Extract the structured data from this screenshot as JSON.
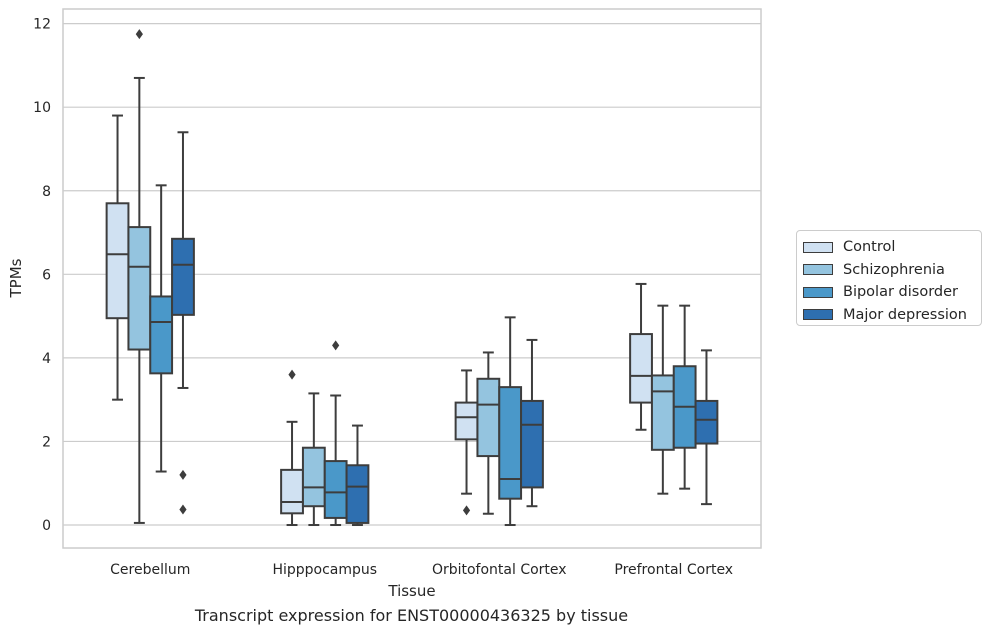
{
  "caption": "Transcript expression for ENST00000436325 by tissue",
  "chart_data": {
    "type": "box",
    "xlabel": "Tissue",
    "ylabel": "TPMs",
    "ylim": [
      -0.55,
      12.35
    ],
    "yticks": [
      0,
      2,
      4,
      6,
      8,
      10,
      12
    ],
    "grid": true,
    "legend_position": "right",
    "categories": [
      "Cerebellum",
      "Hipppocampus",
      "Orbitofontal Cortex",
      "Prefrontal Cortex"
    ],
    "series": [
      {
        "name": "Control",
        "color": "#d0e1f2",
        "boxes": [
          {
            "whislo": 3.0,
            "q1": 4.95,
            "med": 6.48,
            "q3": 7.7,
            "whishi": 9.8,
            "fliers": []
          },
          {
            "whislo": 0.0,
            "q1": 0.28,
            "med": 0.55,
            "q3": 1.32,
            "whishi": 2.47,
            "fliers": [
              3.6
            ]
          },
          {
            "whislo": 0.75,
            "q1": 2.05,
            "med": 2.58,
            "q3": 2.93,
            "whishi": 3.7,
            "fliers": [
              0.35
            ]
          },
          {
            "whislo": 2.28,
            "q1": 2.93,
            "med": 3.57,
            "q3": 4.57,
            "whishi": 5.77,
            "fliers": []
          }
        ]
      },
      {
        "name": "Schizophrenia",
        "color": "#94c4df",
        "boxes": [
          {
            "whislo": 0.05,
            "q1": 4.2,
            "med": 6.18,
            "q3": 7.13,
            "whishi": 10.7,
            "fliers": [
              11.75
            ]
          },
          {
            "whislo": 0.0,
            "q1": 0.45,
            "med": 0.9,
            "q3": 1.85,
            "whishi": 3.15,
            "fliers": []
          },
          {
            "whislo": 0.27,
            "q1": 1.65,
            "med": 2.88,
            "q3": 3.5,
            "whishi": 4.13,
            "fliers": []
          },
          {
            "whislo": 0.75,
            "q1": 1.8,
            "med": 3.2,
            "q3": 3.58,
            "whishi": 5.25,
            "fliers": []
          }
        ]
      },
      {
        "name": "Bipolar disorder",
        "color": "#4a98c9",
        "boxes": [
          {
            "whislo": 1.28,
            "q1": 3.63,
            "med": 4.86,
            "q3": 5.47,
            "whishi": 8.13,
            "fliers": []
          },
          {
            "whislo": 0.0,
            "q1": 0.17,
            "med": 0.78,
            "q3": 1.53,
            "whishi": 3.1,
            "fliers": [
              4.3
            ]
          },
          {
            "whislo": 0.0,
            "q1": 0.63,
            "med": 1.1,
            "q3": 3.3,
            "whishi": 4.97,
            "fliers": []
          },
          {
            "whislo": 0.87,
            "q1": 1.85,
            "med": 2.83,
            "q3": 3.8,
            "whishi": 5.25,
            "fliers": []
          }
        ]
      },
      {
        "name": "Major depression",
        "color": "#2e6fb0",
        "boxes": [
          {
            "whislo": 3.28,
            "q1": 5.03,
            "med": 6.23,
            "q3": 6.85,
            "whishi": 9.4,
            "fliers": [
              1.2,
              0.37
            ]
          },
          {
            "whislo": 0.0,
            "q1": 0.05,
            "med": 0.92,
            "q3": 1.43,
            "whishi": 2.38,
            "fliers": []
          },
          {
            "whislo": 0.45,
            "q1": 0.9,
            "med": 2.4,
            "q3": 2.97,
            "whishi": 4.43,
            "fliers": []
          },
          {
            "whislo": 0.5,
            "q1": 1.95,
            "med": 2.52,
            "q3": 2.97,
            "whishi": 4.18,
            "fliers": []
          }
        ]
      }
    ]
  }
}
